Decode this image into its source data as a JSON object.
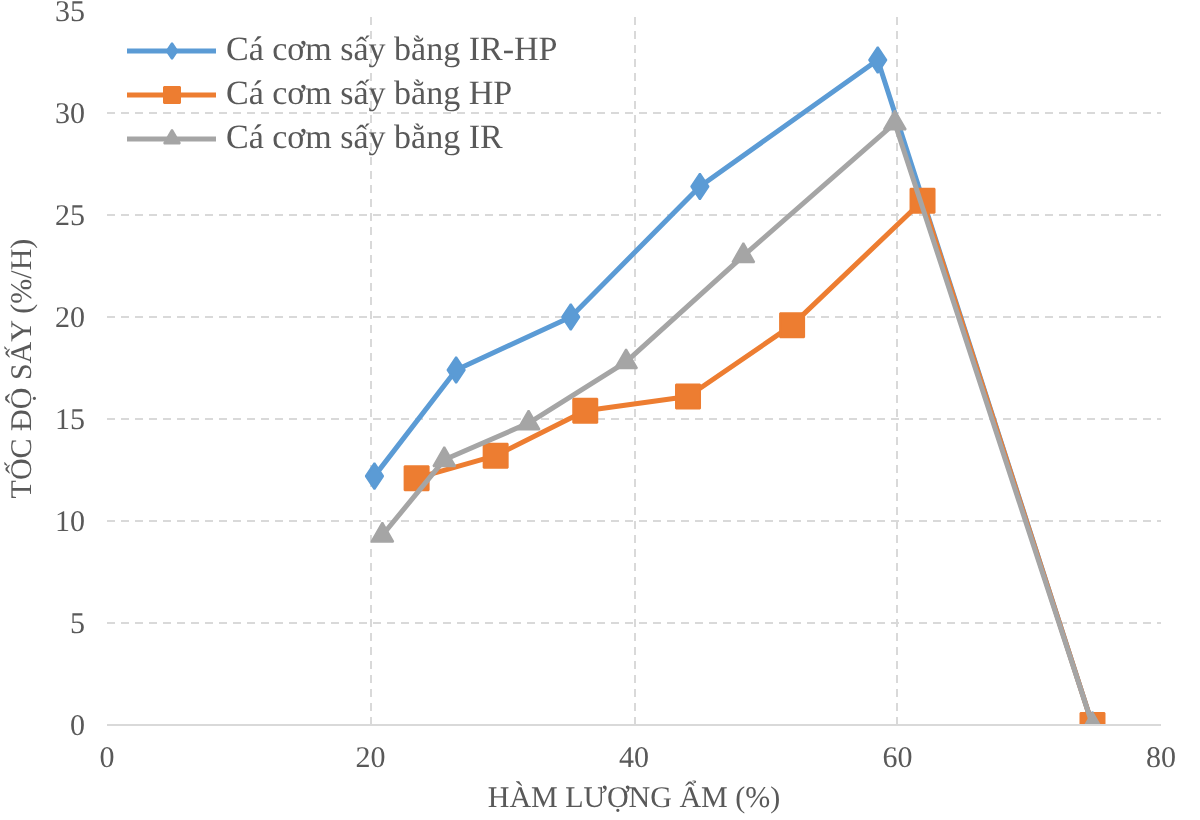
{
  "chart_data": {
    "type": "line",
    "xlabel": "HÀM LƯỢNG ẨM (%)",
    "ylabel": "TỐC ĐỘ SẤY (%/H)",
    "xlim": [
      0,
      80
    ],
    "xticks": [
      0,
      20,
      40,
      60,
      80
    ],
    "ylim": [
      0,
      35
    ],
    "yticks": [
      0,
      5,
      10,
      15,
      20,
      25,
      30,
      35
    ],
    "grid": true,
    "legend": "top left",
    "line_style": "solid",
    "series": [
      {
        "name": "Cá cơm sấy bằng IR-HP",
        "color": "#5b9bd5",
        "marker": "diamond",
        "x": [
          20.3,
          26.5,
          35.2,
          45.0,
          58.5,
          74.8
        ],
        "values": [
          12.2,
          17.4,
          20.0,
          26.4,
          32.6,
          0
        ]
      },
      {
        "name": "Cá cơm sấy bằng HP",
        "color": "#ed7d31",
        "marker": "square",
        "x": [
          23.5,
          29.5,
          36.3,
          44.1,
          52.0,
          61.9,
          74.8
        ],
        "values": [
          12.1,
          13.2,
          15.4,
          16.1,
          19.6,
          25.7,
          0
        ]
      },
      {
        "name": "Cá cơm sấy bằng IR",
        "color": "#a5a5a5",
        "marker": "triangle",
        "x": [
          20.9,
          25.6,
          32.0,
          39.4,
          48.3,
          59.8,
          74.8
        ],
        "values": [
          9.3,
          13.0,
          14.8,
          17.8,
          23.0,
          29.5,
          0
        ]
      }
    ]
  }
}
